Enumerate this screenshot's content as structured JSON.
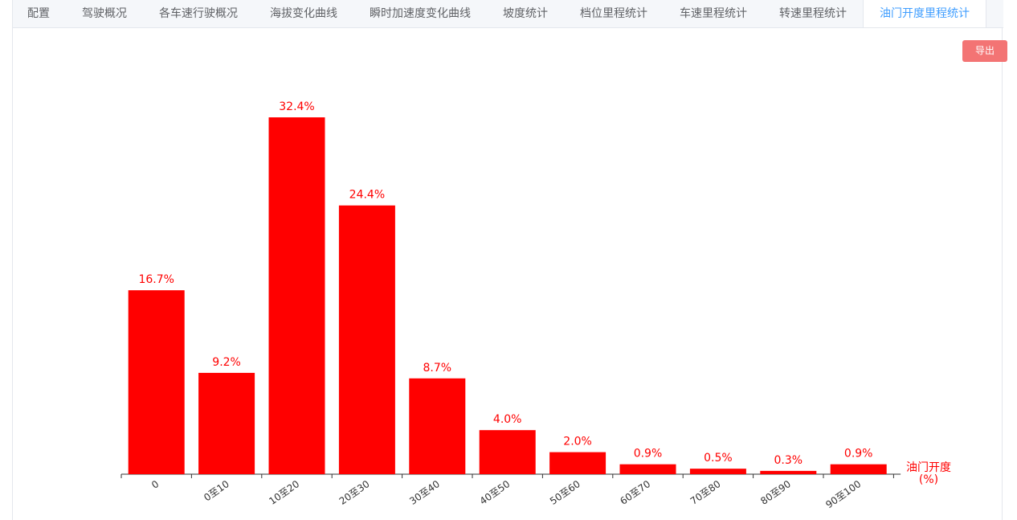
{
  "tabs": [
    "配置",
    "驾驶概况",
    "各车速行驶概况",
    "海拔变化曲线",
    "瞬时加速度变化曲线",
    "坡度统计",
    "档位里程统计",
    "车速里程统计",
    "转速里程统计",
    "油门开度里程统计"
  ],
  "active_tab": 9,
  "export_button": "导出",
  "chart_data": {
    "type": "bar",
    "categories": [
      "0",
      "0至10",
      "10至20",
      "20至30",
      "30至40",
      "40至50",
      "50至60",
      "60至70",
      "70至80",
      "80至90",
      "90至100"
    ],
    "values": [
      16.7,
      9.2,
      32.4,
      24.4,
      8.7,
      4.0,
      2.0,
      0.9,
      0.5,
      0.3,
      0.9
    ],
    "value_labels": [
      "16.7%",
      "9.2%",
      "32.4%",
      "24.4%",
      "8.7%",
      "4.0%",
      "2.0%",
      "0.9%",
      "0.5%",
      "0.3%",
      "0.9%"
    ],
    "color": "#ff0000",
    "x_label": [
      "油门开度",
      "(%)"
    ]
  }
}
